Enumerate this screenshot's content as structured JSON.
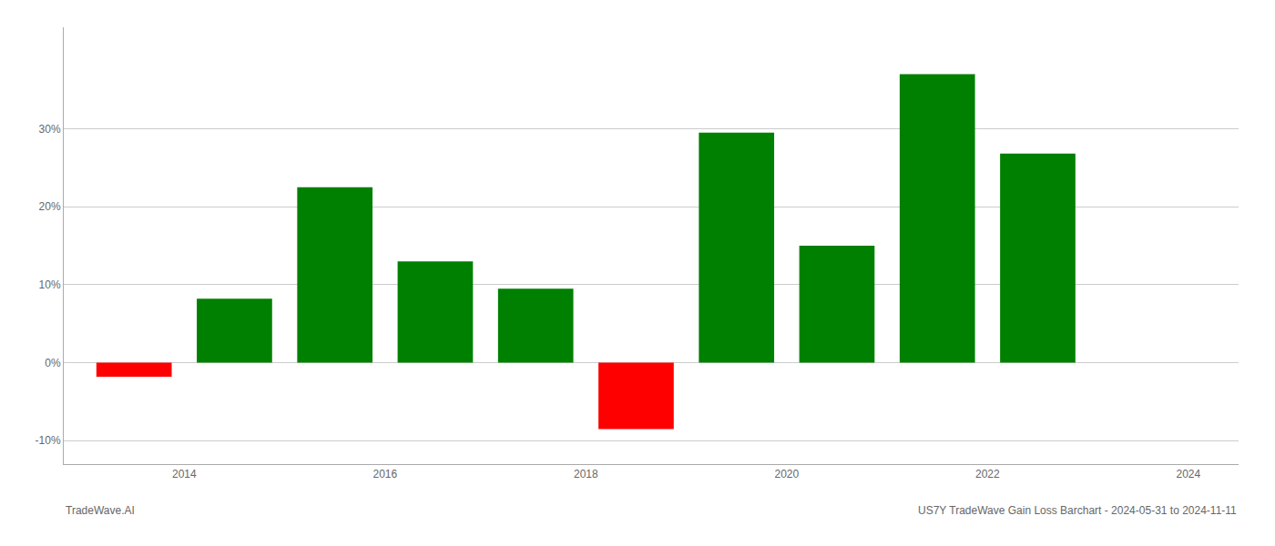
{
  "chart_data": {
    "type": "bar",
    "x": [
      2013.5,
      2014.5,
      2015.5,
      2016.5,
      2017.5,
      2018.5,
      2019.5,
      2020.5,
      2021.5,
      2022.5
    ],
    "values": [
      -1.8,
      8.2,
      22.5,
      13.0,
      9.5,
      -8.5,
      29.5,
      15.0,
      37.0,
      26.8
    ],
    "colors": [
      "#ff0000",
      "#008000",
      "#008000",
      "#008000",
      "#008000",
      "#ff0000",
      "#008000",
      "#008000",
      "#008000",
      "#008000"
    ],
    "xlim": [
      2012.8,
      2024.5
    ],
    "xticks": [
      2014,
      2016,
      2018,
      2020,
      2022,
      2024
    ],
    "ylim": [
      -13,
      43
    ],
    "yticks": [
      {
        "value": -10,
        "label": "-10%"
      },
      {
        "value": 0,
        "label": "0%"
      },
      {
        "value": 10,
        "label": "10%"
      },
      {
        "value": 20,
        "label": "20%"
      },
      {
        "value": 30,
        "label": "30%"
      }
    ],
    "grid": true,
    "annotations": [
      "TradeWave.AI",
      "US7Y TradeWave Gain Loss Barchart - 2024-05-31 to 2024-11-11"
    ]
  }
}
